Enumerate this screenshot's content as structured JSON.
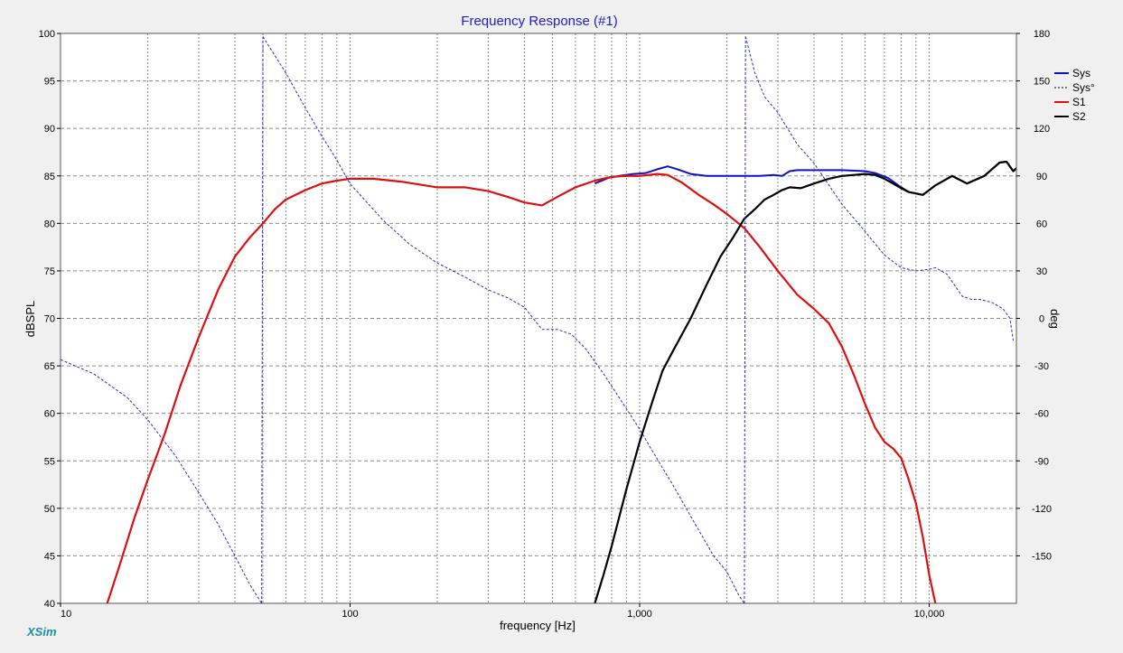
{
  "chart_data": {
    "type": "line",
    "title": "Frequency Response (#1)",
    "xlabel": "frequency [Hz]",
    "ylabel": "dBSPL",
    "y2label": "deg",
    "brand": "XSim",
    "x_scale": "log",
    "xlim": [
      10,
      20000
    ],
    "ylim": [
      40,
      100
    ],
    "y2lim": [
      -180,
      180
    ],
    "grid": true,
    "legend_position": "top-right",
    "x_ticks": [
      {
        "value": 10,
        "label": "10"
      },
      {
        "value": 100,
        "label": "100"
      },
      {
        "value": 1000,
        "label": "1,000"
      },
      {
        "value": 10000,
        "label": "10,000"
      }
    ],
    "y_ticks": [
      "100",
      "95",
      "90",
      "85",
      "80",
      "75",
      "70",
      "65",
      "60",
      "55",
      "50",
      "45",
      "40"
    ],
    "y2_ticks": [
      "180",
      "150",
      "120",
      "90",
      "60",
      "30",
      "0",
      "-30",
      "-60",
      "-90",
      "-120",
      "-150"
    ],
    "colors": {
      "sys": "#1010c8",
      "sys_phase": "#2a2ad0",
      "s1": "#dd1010",
      "s2": "#000000",
      "background": "#ffffff",
      "grid": "#8a8a8a"
    },
    "series": [
      {
        "name": "Sys",
        "axis": "left",
        "style": "solid",
        "x": [
          700,
          780,
          850,
          950,
          1050,
          1150,
          1250,
          1350,
          1500,
          1700,
          2000,
          2300,
          2600,
          2900,
          3100,
          3300,
          3500,
          4000,
          5000,
          6000,
          6500,
          7200,
          8000,
          8500,
          9500,
          10500,
          12000,
          13500,
          15500,
          17500,
          18500,
          19500,
          20000
        ],
        "y": [
          84.2,
          84.8,
          85.0,
          85.2,
          85.3,
          85.7,
          86.0,
          85.7,
          85.2,
          85.0,
          85.0,
          85.0,
          85.0,
          85.1,
          85.0,
          85.5,
          85.6,
          85.6,
          85.6,
          85.5,
          85.3,
          84.8,
          83.8,
          83.3,
          83.0,
          84.0,
          85.0,
          84.2,
          85.0,
          86.4,
          86.5,
          85.5,
          85.8
        ]
      },
      {
        "name": "Sys°",
        "axis": "right",
        "style": "dashed",
        "segments": [
          {
            "x": [
              10,
              13,
              17,
              20,
              25,
              30,
              35,
              40,
              45,
              49.5
            ],
            "y": [
              -26,
              -35,
              -50,
              -64,
              -87,
              -110,
              -130,
              -150,
              -168,
              -180
            ]
          },
          {
            "x": [
              50,
              60,
              70,
              80,
              90,
              100,
              130,
              160,
              200,
              250,
              300,
              350,
              400,
              460,
              520,
              580,
              650,
              750,
              900,
              1000,
              1100,
              1300,
              1500,
              1800,
              2000,
              2200,
              2300
            ],
            "y": [
              178,
              155,
              133,
              115,
              100,
              85,
              62,
              47,
              35,
              26,
              18,
              13,
              7,
              -7,
              -7,
              -10,
              -19,
              -35,
              -57,
              -70,
              -83,
              -105,
              -125,
              -150,
              -160,
              -175,
              -180
            ]
          },
          {
            "x": [
              2320,
              2500,
              2700,
              3000,
              3500,
              4000,
              5000,
              6000,
              7000,
              8000,
              9000,
              10000,
              10500,
              11500,
              13000,
              14000,
              15000,
              16500,
              18000,
              19000,
              19500
            ],
            "y": [
              178,
              155,
              140,
              130,
              110,
              98,
              72,
              55,
              40,
              32,
              30,
              31,
              32,
              28,
              14,
              12,
              12,
              10,
              6,
              0,
              -14
            ]
          }
        ]
      },
      {
        "name": "S1",
        "axis": "left",
        "style": "solid",
        "x": [
          14.5,
          16,
          18,
          20,
          23,
          26,
          30,
          35,
          40,
          45,
          50,
          55,
          60,
          70,
          80,
          90,
          100,
          120,
          150,
          200,
          250,
          300,
          350,
          400,
          460,
          520,
          600,
          700,
          800,
          900,
          1000,
          1150,
          1250,
          1400,
          1600,
          1800,
          2000,
          2300,
          2600,
          3000,
          3500,
          4000,
          4500,
          5000,
          5500,
          6000,
          6500,
          7000,
          7500,
          8000,
          8500,
          9000,
          9500,
          10000,
          10500
        ],
        "y": [
          40,
          44,
          49,
          53,
          58,
          63,
          68,
          73,
          76.5,
          78.5,
          80,
          81.5,
          82.5,
          83.5,
          84.2,
          84.5,
          84.7,
          84.7,
          84.4,
          83.8,
          83.8,
          83.4,
          82.8,
          82.2,
          81.9,
          82.8,
          83.8,
          84.5,
          84.9,
          85.0,
          85.0,
          85.2,
          85.1,
          84.3,
          83.0,
          82.0,
          81.0,
          79.5,
          77.5,
          75.0,
          72.5,
          71.0,
          69.5,
          67.0,
          64.0,
          61.0,
          58.5,
          57.0,
          56.3,
          55.3,
          53.0,
          50.5,
          47.0,
          43.0,
          40.0
        ]
      },
      {
        "name": "S2",
        "axis": "left",
        "style": "solid",
        "x": [
          700,
          750,
          800,
          900,
          1000,
          1100,
          1200,
          1300,
          1500,
          1700,
          1900,
          2100,
          2300,
          2500,
          2700,
          2900,
          3100,
          3300,
          3600,
          4000,
          4500,
          5000,
          5500,
          6000,
          6500,
          7000,
          7500,
          8000,
          8500,
          9500,
          10500,
          12000,
          13500,
          15500,
          17500,
          18500,
          19500,
          20000
        ],
        "y": [
          40,
          43,
          46,
          52,
          57,
          61,
          64.5,
          66.5,
          70,
          73.5,
          76.5,
          78.5,
          80.5,
          81.5,
          82.5,
          83.0,
          83.5,
          83.8,
          83.7,
          84.2,
          84.7,
          85.0,
          85.1,
          85.2,
          85.1,
          84.7,
          84.2,
          83.7,
          83.3,
          83.0,
          84.0,
          85.0,
          84.2,
          85.0,
          86.4,
          86.5,
          85.5,
          85.8
        ]
      }
    ]
  }
}
